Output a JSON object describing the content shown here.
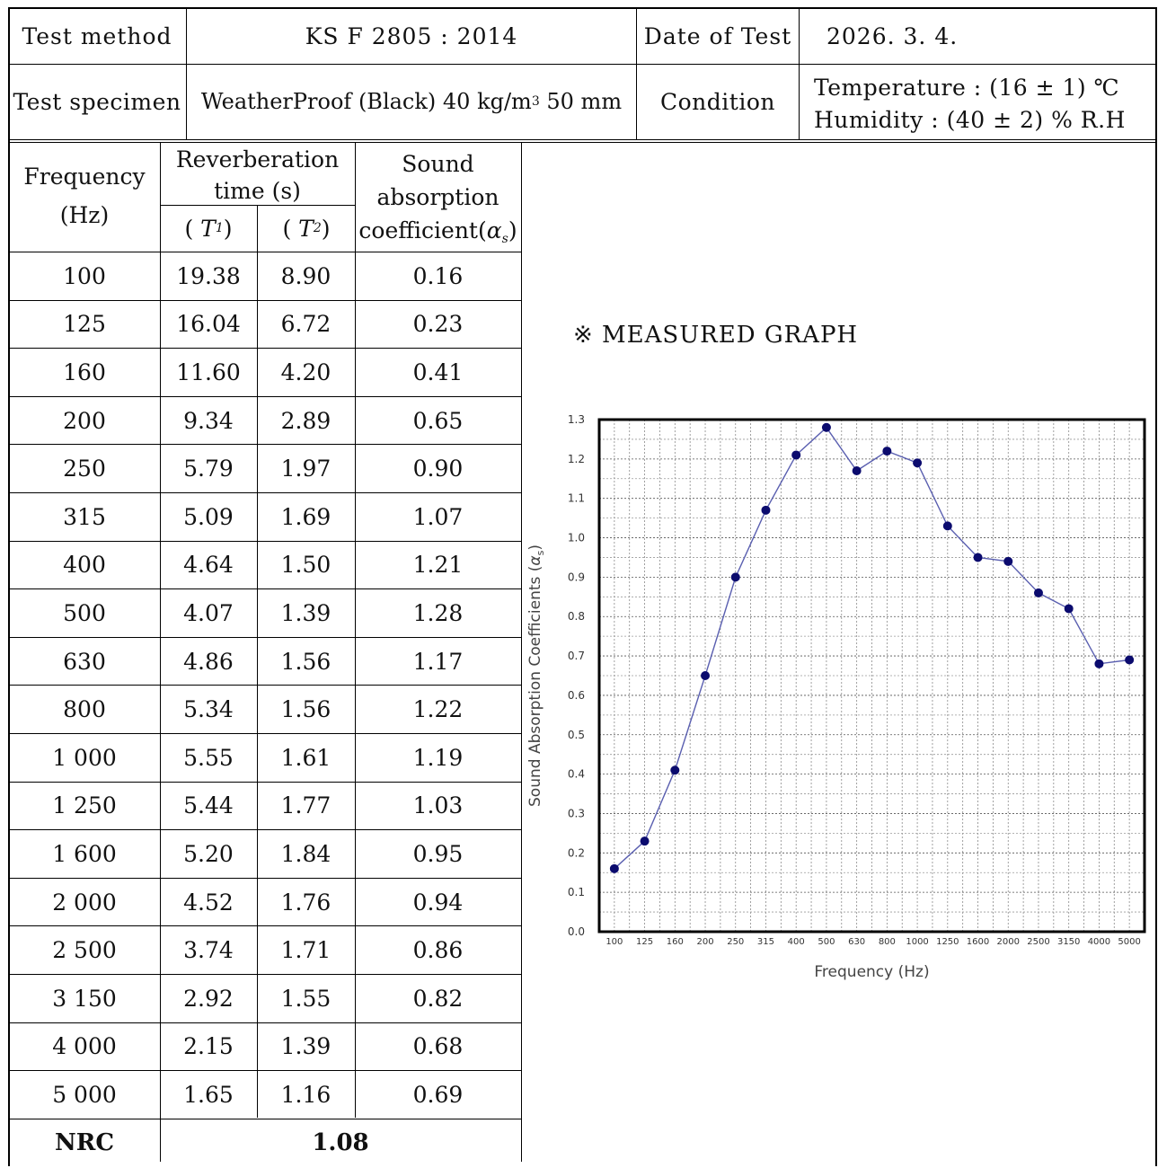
{
  "header": {
    "test_method_label": "Test method",
    "test_method_value": "KS F 2805 : 2014",
    "date_label": "Date of Test",
    "date_value": "2026. 3. 4.",
    "specimen_label": "Test specimen",
    "specimen_value_prefix": "WeatherProof (Black) 40 kg/m",
    "specimen_value_sup": "3",
    "specimen_value_suffix": "50 mm",
    "condition_label": "Condition",
    "temperature": "Temperature : (16 ± 1) ℃",
    "humidity": "Humidity : (40 ± 2) % R.H"
  },
  "table": {
    "col_frequency_line1": "Frequency",
    "col_frequency_line2": "(Hz)",
    "col_reverb_line1": "Reverberation",
    "col_reverb_line2": "time (s)",
    "col_t1_open": "(",
    "col_t1": "T",
    "col_t1_sub": "1",
    "col_t1_close": ")",
    "col_t2_open": "(",
    "col_t2": "T",
    "col_t2_sub": "2",
    "col_t2_close": ")",
    "col_abs_line1": "Sound",
    "col_abs_line2": "absorption",
    "col_abs_line3": "coefficient(",
    "col_abs_alpha": "α",
    "col_abs_sub": "s",
    "col_abs_close": ")",
    "rows": [
      {
        "freq": "100",
        "t1": "19.38",
        "t2": "8.90",
        "alpha": "0.16"
      },
      {
        "freq": "125",
        "t1": "16.04",
        "t2": "6.72",
        "alpha": "0.23"
      },
      {
        "freq": "160",
        "t1": "11.60",
        "t2": "4.20",
        "alpha": "0.41"
      },
      {
        "freq": "200",
        "t1": "9.34",
        "t2": "2.89",
        "alpha": "0.65"
      },
      {
        "freq": "250",
        "t1": "5.79",
        "t2": "1.97",
        "alpha": "0.90"
      },
      {
        "freq": "315",
        "t1": "5.09",
        "t2": "1.69",
        "alpha": "1.07"
      },
      {
        "freq": "400",
        "t1": "4.64",
        "t2": "1.50",
        "alpha": "1.21"
      },
      {
        "freq": "500",
        "t1": "4.07",
        "t2": "1.39",
        "alpha": "1.28"
      },
      {
        "freq": "630",
        "t1": "4.86",
        "t2": "1.56",
        "alpha": "1.17"
      },
      {
        "freq": "800",
        "t1": "5.34",
        "t2": "1.56",
        "alpha": "1.22"
      },
      {
        "freq": "1 000",
        "t1": "5.55",
        "t2": "1.61",
        "alpha": "1.19"
      },
      {
        "freq": "1 250",
        "t1": "5.44",
        "t2": "1.77",
        "alpha": "1.03"
      },
      {
        "freq": "1 600",
        "t1": "5.20",
        "t2": "1.84",
        "alpha": "0.95"
      },
      {
        "freq": "2 000",
        "t1": "4.52",
        "t2": "1.76",
        "alpha": "0.94"
      },
      {
        "freq": "2 500",
        "t1": "3.74",
        "t2": "1.71",
        "alpha": "0.86"
      },
      {
        "freq": "3 150",
        "t1": "2.92",
        "t2": "1.55",
        "alpha": "0.82"
      },
      {
        "freq": "4 000",
        "t1": "2.15",
        "t2": "1.39",
        "alpha": "0.68"
      },
      {
        "freq": "5 000",
        "t1": "1.65",
        "t2": "1.16",
        "alpha": "0.69"
      }
    ],
    "nrc_label": "NRC",
    "nrc_value": "1.08"
  },
  "graph_heading": "※ MEASURED GRAPH",
  "chart_data": {
    "type": "line",
    "categories": [
      "100",
      "125",
      "160",
      "200",
      "250",
      "315",
      "400",
      "500",
      "630",
      "800",
      "1000",
      "1250",
      "1600",
      "2000",
      "2500",
      "3150",
      "4000",
      "5000"
    ],
    "series": [
      {
        "values": [
          0.16,
          0.23,
          0.41,
          0.65,
          0.9,
          1.07,
          1.21,
          1.28,
          1.17,
          1.22,
          1.19,
          1.03,
          0.95,
          0.94,
          0.86,
          0.82,
          0.68,
          0.69
        ]
      }
    ],
    "xlabel": "Frequency (Hz)",
    "ylabel_text": "Sound Absorption Coefficients (",
    "ylabel_alpha": "α",
    "ylabel_sub": "s",
    "ylabel_close": ")",
    "ylim": [
      0,
      1.3
    ],
    "yticks": [
      "0.0",
      "0.1",
      "0.2",
      "0.3",
      "0.4",
      "0.5",
      "0.6",
      "0.7",
      "0.8",
      "0.9",
      "1.0",
      "1.1",
      "1.2",
      "1.3"
    ],
    "grid": true,
    "line_color": "#5a5fb0",
    "marker_color": "#0b0b6e"
  }
}
